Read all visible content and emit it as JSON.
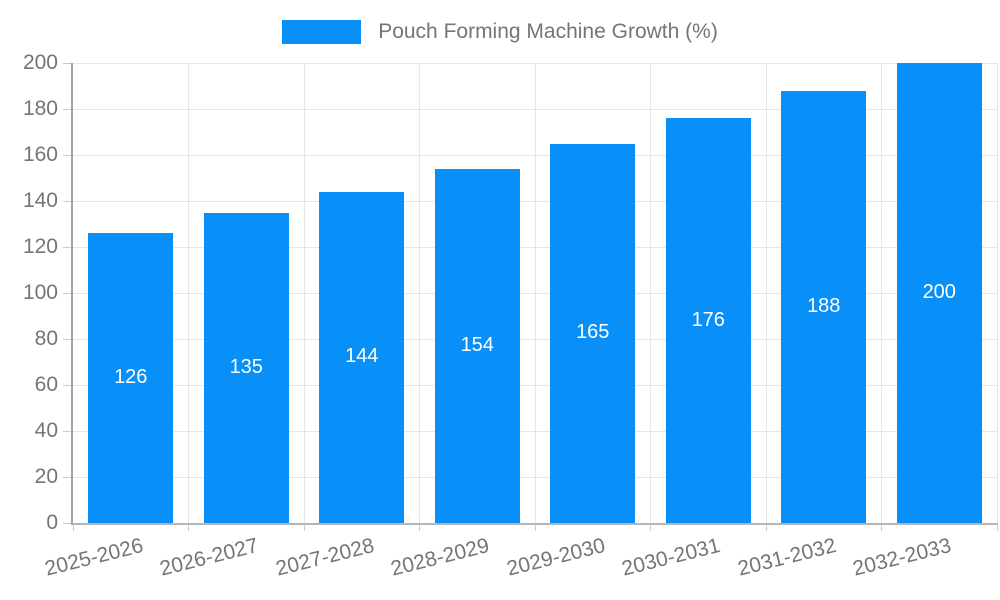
{
  "chart_data": {
    "type": "bar",
    "title": "Pouch Forming Machine Growth (%)",
    "categories": [
      "2025-2026",
      "2026-2027",
      "2027-2028",
      "2028-2029",
      "2029-2030",
      "2030-2031",
      "2031-2032",
      "2032-2033"
    ],
    "values": [
      126,
      135,
      144,
      154,
      165,
      176,
      188,
      200
    ],
    "value_labels": [
      "126",
      "135",
      "144",
      "154",
      "165",
      "176",
      "188",
      "200"
    ],
    "y_ticks": [
      0,
      20,
      40,
      60,
      80,
      100,
      120,
      140,
      160,
      180,
      200
    ],
    "ylim": [
      0,
      200
    ],
    "xlabel": "",
    "ylabel": "",
    "grid": "on",
    "legend_position": "top-center",
    "colors": {
      "bar": "#0990f8",
      "bar_value_label": "#ffffff",
      "axis_text": "#757575",
      "gridline": "#e6e6e6",
      "y_axis_line": "#a3a3a3",
      "x_axis_line": "#b5b5b5",
      "tick": "#cccccc"
    }
  }
}
